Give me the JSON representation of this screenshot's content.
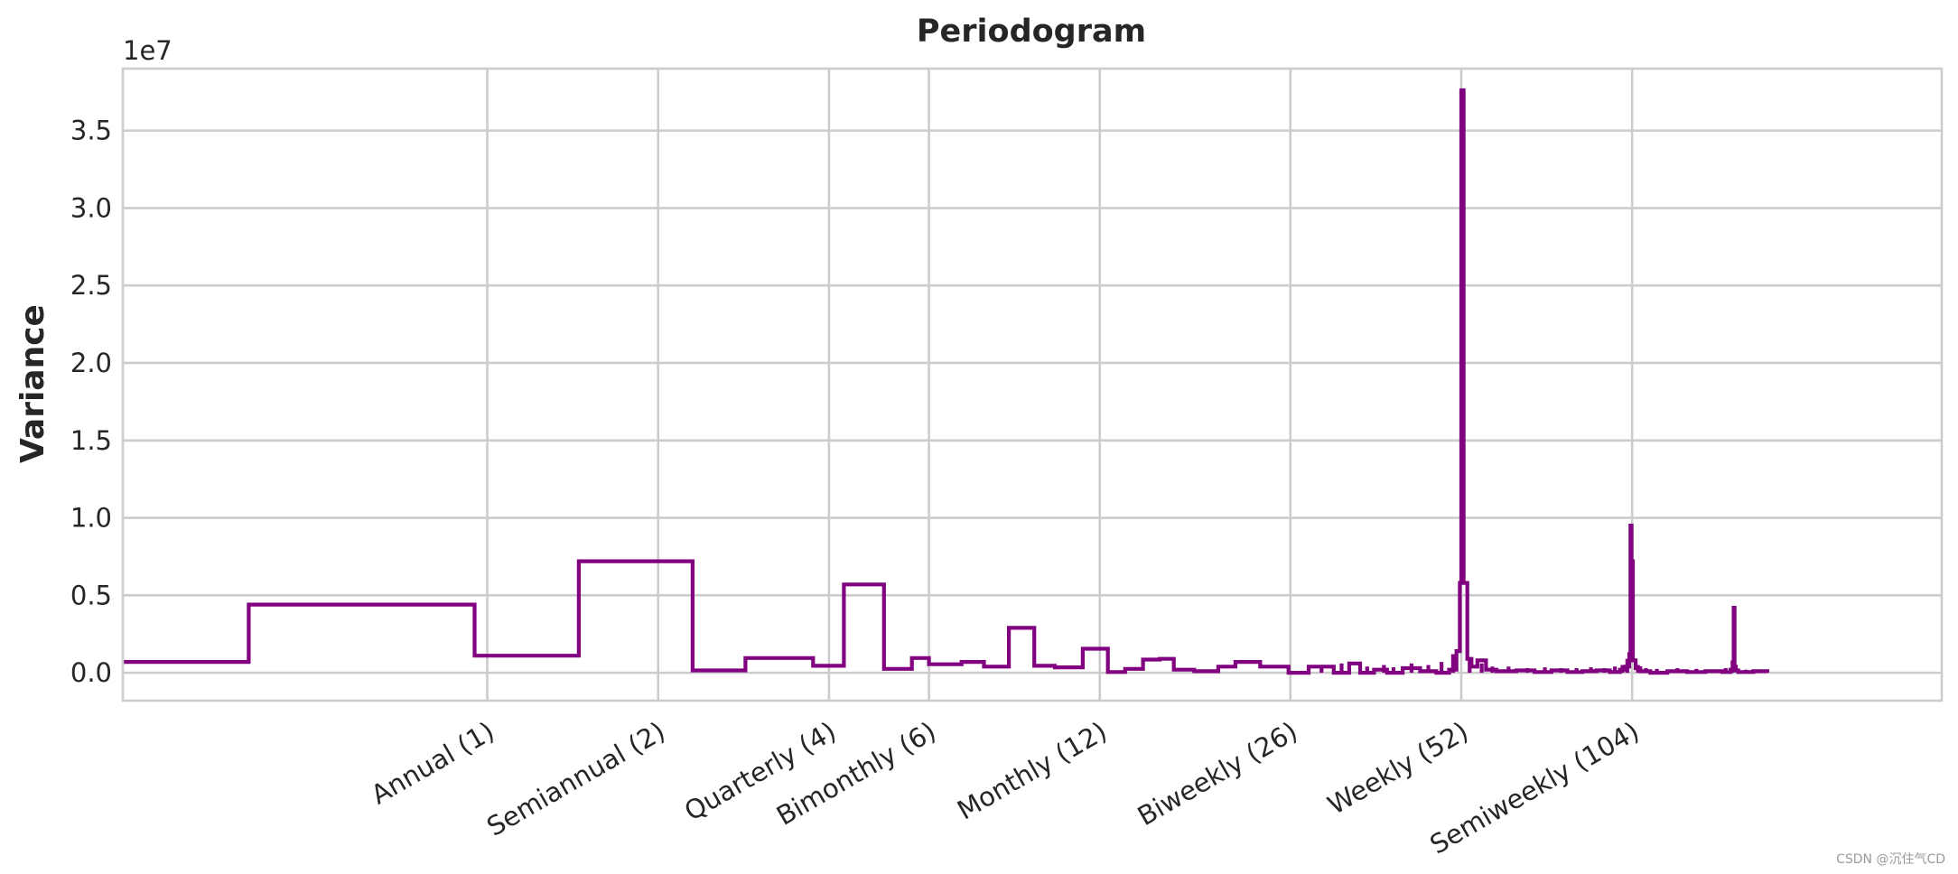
{
  "chart_data": {
    "type": "line",
    "title": "Periodogram",
    "ylabel": "Variance",
    "y_offset_label": "1e7",
    "ylim": [
      -0.18,
      3.9
    ],
    "y_unit_multiplier": 10000000,
    "y_ticks": [
      0.0,
      0.5,
      1.0,
      1.5,
      2.0,
      2.5,
      3.0,
      3.5
    ],
    "y_tick_labels": [
      "0.0",
      "0.5",
      "1.0",
      "1.5",
      "2.0",
      "2.5",
      "3.0",
      "3.5"
    ],
    "x_scale": "log",
    "xlim": [
      0.228,
      365.2
    ],
    "x_ticks": [
      1,
      2,
      4,
      6,
      12,
      26,
      52,
      104
    ],
    "x_tick_labels": [
      "Annual (1)",
      "Semiannual (2)",
      "Quarterly (4)",
      "Bimonthly (6)",
      "Monthly (12)",
      "Biweekly (26)",
      "Weekly (52)",
      "Semiweekly (104)"
    ],
    "grid": true,
    "series": [
      {
        "color": "#800080",
        "drawstyle": "steps-pre",
        "x": [
          0.228,
          0.38,
          0.95,
          1.45,
          2.3,
          2.85,
          3.75,
          4.25,
          5.0,
          5.6,
          6.0,
          6.85,
          7.5,
          8.3,
          9.2,
          10.0,
          11.2,
          12.4,
          13.3,
          14.3,
          15.3,
          16.2,
          17.6,
          19.4,
          20.8,
          23.0,
          25.8,
          28.0,
          31.0,
          33.0,
          34.5,
          36.5,
          38.5,
          41.0,
          44.0,
          47.0,
          49.5,
          51.0,
          51.7,
          52.0,
          52.5,
          53.3,
          54.2,
          55.5,
          57.5,
          60.0,
          65.0,
          70.0,
          75.0,
          80.0,
          85.0,
          90.0,
          95.0,
          99.0,
          101.0,
          102.8,
          103.3,
          103.8,
          104.3,
          105.5,
          107.5,
          112.0,
          120.0,
          130.0,
          140.0,
          150.0,
          155.0,
          157.0,
          157.6,
          158.4,
          160.0,
          170.0,
          180.0
        ],
        "values": [
          0.07,
          0.44,
          0.11,
          0.72,
          0.015,
          0.095,
          0.045,
          0.57,
          0.025,
          0.095,
          0.055,
          0.07,
          0.04,
          0.29,
          0.045,
          0.035,
          0.155,
          0.005,
          0.025,
          0.085,
          0.09,
          0.02,
          0.01,
          0.04,
          0.07,
          0.04,
          0.0,
          0.04,
          0.0,
          0.06,
          0.0,
          0.02,
          0.0,
          0.03,
          0.01,
          0.0,
          0.02,
          0.14,
          0.58,
          3.76,
          0.58,
          0.09,
          0.04,
          0.08,
          0.02,
          0.01,
          0.015,
          0.005,
          0.015,
          0.005,
          0.01,
          0.015,
          0.005,
          0.02,
          0.04,
          0.12,
          0.95,
          0.72,
          0.08,
          0.03,
          0.01,
          0.0,
          0.01,
          0.005,
          0.01,
          0.005,
          0.02,
          0.42,
          0.04,
          0.015,
          0.005,
          0.01,
          0.0
        ]
      }
    ]
  },
  "watermark": "CSDN @沉住气CD"
}
